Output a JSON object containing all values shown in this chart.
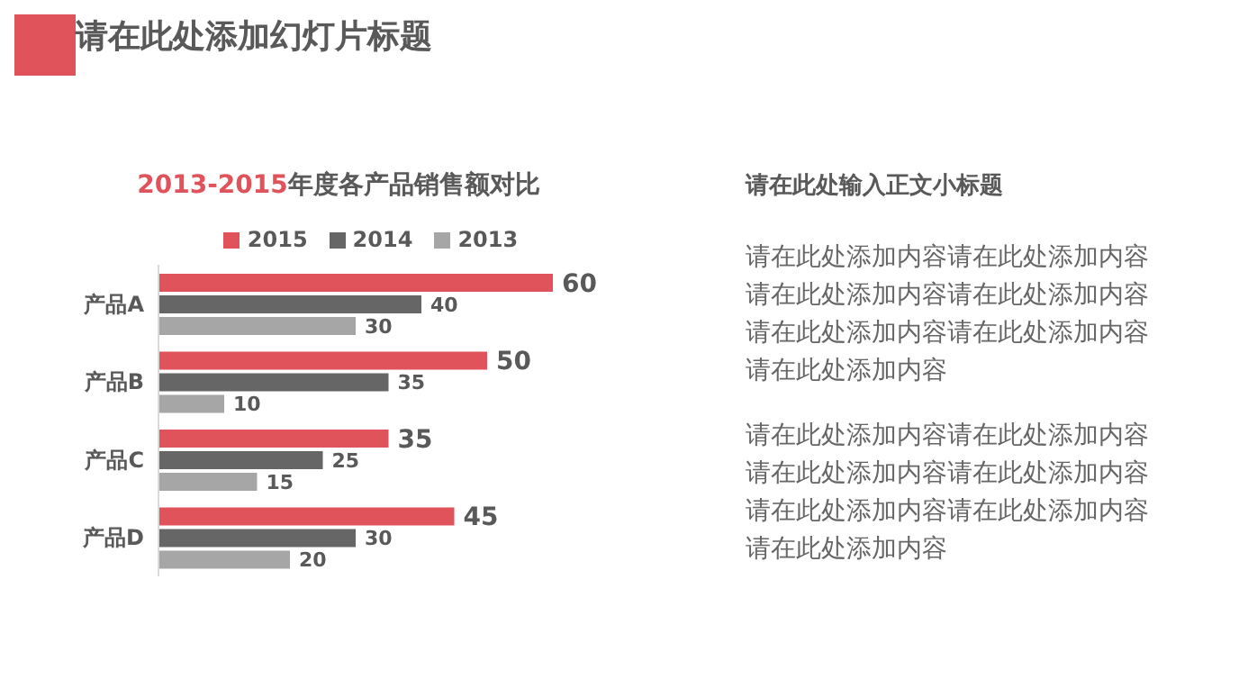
{
  "chart_data": {
    "type": "bar",
    "orientation": "horizontal",
    "title": "2013-2015年度各产品销售额对比",
    "categories": [
      "产品A",
      "产品B",
      "产品C",
      "产品D"
    ],
    "series": [
      {
        "name": "2015",
        "color": "#e0535b",
        "values": [
          60,
          50,
          35,
          45
        ]
      },
      {
        "name": "2014",
        "color": "#666666",
        "values": [
          40,
          35,
          25,
          30
        ]
      },
      {
        "name": "2013",
        "color": "#a6a6a6",
        "values": [
          30,
          10,
          15,
          20
        ]
      }
    ],
    "data_labels": true,
    "legend": "top",
    "grid": false,
    "annotations": [
      "请在此处添加幻灯片标题",
      "请在此处输入正文小标题",
      "请在此处添加内容请在此处添加内容请在此处添加内容请在此处添加内容请在此处添加内容请在此处添加内容请在此处添加内容",
      "请在此处添加内容请在此处添加内容请在此处添加内容请在此处添加内容请在此处添加内容请在此处添加内容请在此处添加内容"
    ]
  }
}
